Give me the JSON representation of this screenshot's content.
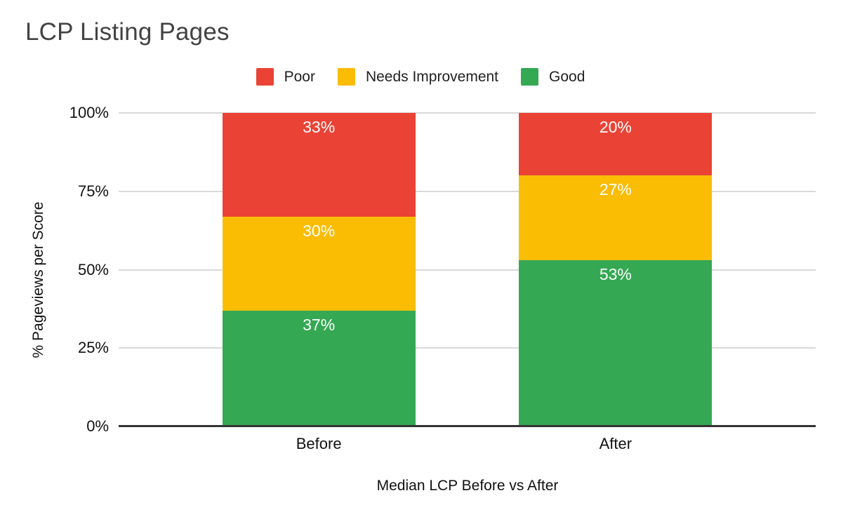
{
  "title": "LCP Listing Pages",
  "legend": [
    {
      "name": "poor",
      "label": "Poor",
      "color": "#EA4335"
    },
    {
      "name": "needs-improvement",
      "label": "Needs Improvement",
      "color": "#FBBC04"
    },
    {
      "name": "good",
      "label": "Good",
      "color": "#34A853"
    }
  ],
  "axes": {
    "y_title": "% Pageviews per Score",
    "x_title": "Median LCP Before vs After"
  },
  "chart_data": {
    "type": "bar",
    "stacked": true,
    "title": "LCP Listing Pages",
    "xlabel": "Median LCP Before vs After",
    "ylabel": "% Pageviews per Score",
    "categories": [
      "Before",
      "After"
    ],
    "series": [
      {
        "name": "Good",
        "color": "#34A853",
        "values": [
          37,
          53
        ]
      },
      {
        "name": "Needs Improvement",
        "color": "#FBBC04",
        "values": [
          30,
          27
        ]
      },
      {
        "name": "Poor",
        "color": "#EA4335",
        "values": [
          33,
          20
        ]
      }
    ],
    "ylim": [
      0,
      100
    ],
    "y_ticks": [
      {
        "label": "0%",
        "value": 0
      },
      {
        "label": "25%",
        "value": 25
      },
      {
        "label": "50%",
        "value": 50
      },
      {
        "label": "75%",
        "value": 75
      },
      {
        "label": "100%",
        "value": 100
      }
    ],
    "value_label_suffix": "%",
    "grid": true,
    "legend_position": "top",
    "colors": {
      "grid": "#D9D9D9",
      "axis": "#333333",
      "bar_label": "#FFFFFF"
    }
  }
}
